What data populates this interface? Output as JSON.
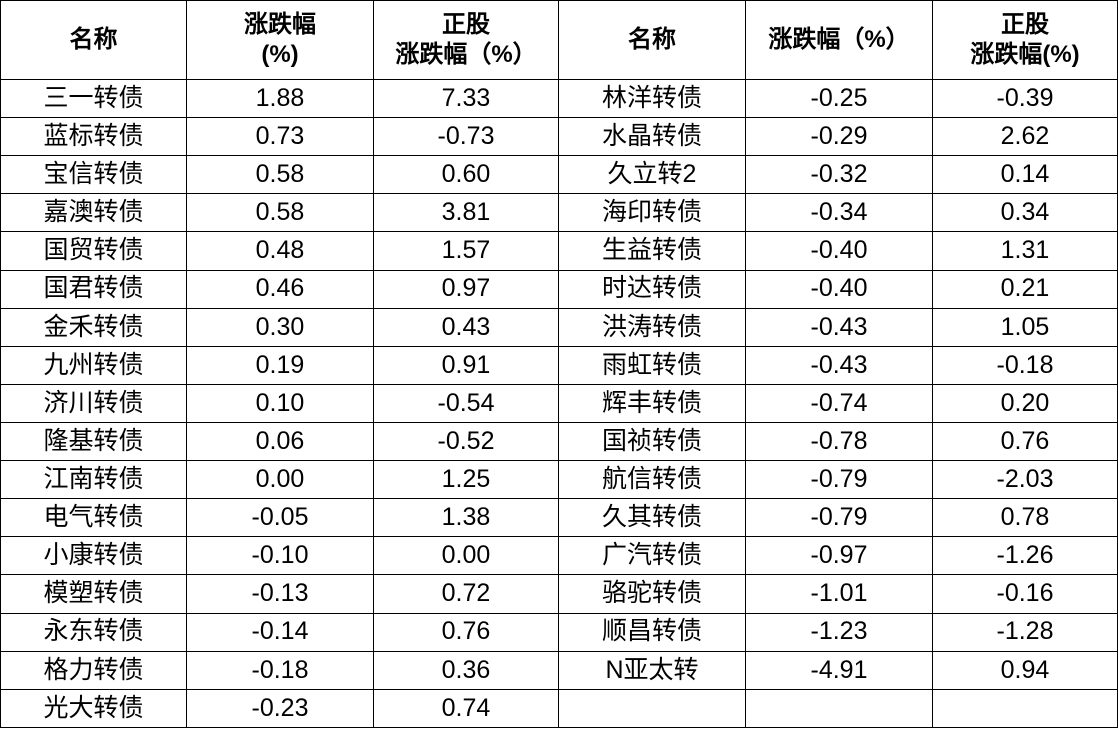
{
  "header": [
    "名称",
    "涨跌幅\n(%)",
    "正股\n涨跌幅（%）",
    "名称",
    "涨跌幅（%）",
    "正股\n涨跌幅(%)"
  ],
  "left_rows": [
    [
      "三一转债",
      "1.88",
      "7.33"
    ],
    [
      "蓝标转债",
      "0.73",
      "-0.73"
    ],
    [
      "宝信转债",
      "0.58",
      "0.60"
    ],
    [
      "嘉澳转债",
      "0.58",
      "3.81"
    ],
    [
      "国贸转债",
      "0.48",
      "1.57"
    ],
    [
      "国君转债",
      "0.46",
      "0.97"
    ],
    [
      "金禾转债",
      "0.30",
      "0.43"
    ],
    [
      "九州转债",
      "0.19",
      "0.91"
    ],
    [
      "济川转债",
      "0.10",
      "-0.54"
    ],
    [
      "隆基转债",
      "0.06",
      "-0.52"
    ],
    [
      "江南转债",
      "0.00",
      "1.25"
    ],
    [
      "电气转债",
      "-0.05",
      "1.38"
    ],
    [
      "小康转债",
      "-0.10",
      "0.00"
    ],
    [
      "模塑转债",
      "-0.13",
      "0.72"
    ],
    [
      "永东转债",
      "-0.14",
      "0.76"
    ],
    [
      "格力转债",
      "-0.18",
      "0.36"
    ],
    [
      "光大转债",
      "-0.23",
      "0.74"
    ]
  ],
  "right_rows": [
    [
      "林洋转债",
      "-0.25",
      "-0.39"
    ],
    [
      "水晶转债",
      "-0.29",
      "2.62"
    ],
    [
      "久立转2",
      "-0.32",
      "0.14"
    ],
    [
      "海印转债",
      "-0.34",
      "0.34"
    ],
    [
      "生益转债",
      "-0.40",
      "1.31"
    ],
    [
      "时达转债",
      "-0.40",
      "0.21"
    ],
    [
      "洪涛转债",
      "-0.43",
      "1.05"
    ],
    [
      "雨虹转债",
      "-0.43",
      "-0.18"
    ],
    [
      "辉丰转债",
      "-0.74",
      "0.20"
    ],
    [
      "国祯转债",
      "-0.78",
      "0.76"
    ],
    [
      "航信转债",
      "-0.79",
      "-2.03"
    ],
    [
      "久其转债",
      "-0.79",
      "0.78"
    ],
    [
      "广汽转债",
      "-0.97",
      "-1.26"
    ],
    [
      "骆驼转债",
      "-1.01",
      "-0.16"
    ],
    [
      "顺昌转债",
      "-1.23",
      "-1.28"
    ],
    [
      "N亚太转",
      "-4.91",
      "0.94"
    ]
  ]
}
